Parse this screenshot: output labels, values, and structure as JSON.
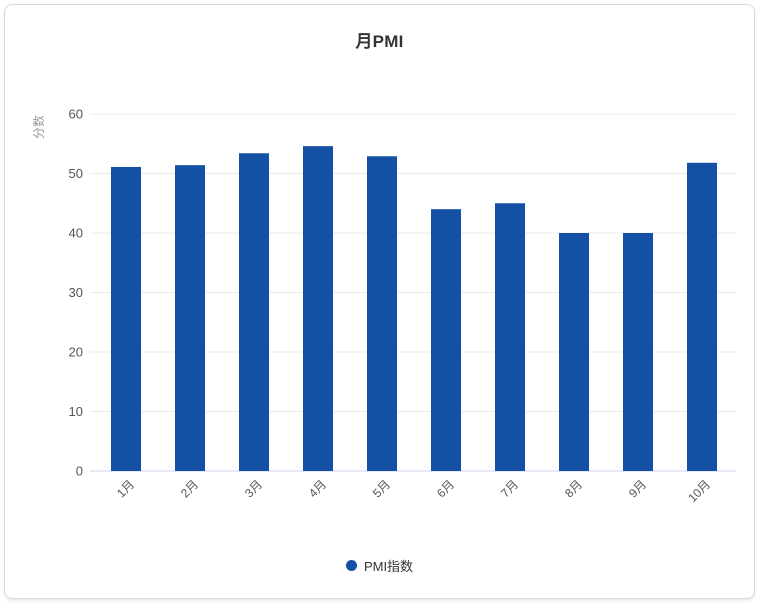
{
  "title": "月PMI",
  "chart_data": {
    "type": "bar",
    "title": "月PMI",
    "xlabel": "",
    "ylabel": "分数",
    "categories": [
      "1月",
      "2月",
      "3月",
      "4月",
      "5月",
      "6月",
      "7月",
      "8月",
      "9月",
      "10月"
    ],
    "series": [
      {
        "name": "PMI指数",
        "values": [
          51.1,
          51.4,
          53.4,
          54.6,
          52.9,
          44.0,
          45.0,
          40.0,
          40.0,
          51.8
        ]
      }
    ],
    "ylim": [
      0,
      60
    ],
    "yticks": [
      0,
      10,
      20,
      30,
      40,
      50,
      60
    ],
    "grid": true,
    "legend_position": "bottom",
    "bar_color": "#1450A4",
    "x_label_rotation": -45
  },
  "legend": {
    "items": [
      {
        "label": "PMI指数",
        "color": "#1450A4"
      }
    ]
  },
  "colors": {
    "bar": "#1450A4",
    "title_text": "#333333",
    "axis_title_text": "#999999",
    "tick_text": "#555555",
    "gridline": "#ebebeb",
    "axis_line": "#ccd6ea",
    "card_border": "#d9d9d9",
    "background": "#ffffff"
  }
}
